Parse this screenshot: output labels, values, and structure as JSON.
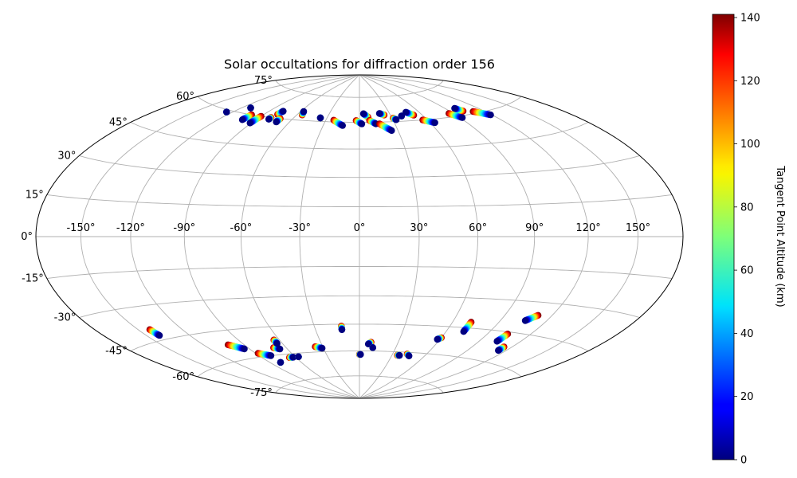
{
  "chart_data": {
    "type": "scatter",
    "projection": "hammer",
    "title": "Solar occultations for diffraction order 156",
    "longitude_ticks": [
      "-150°",
      "-120°",
      "-90°",
      "-60°",
      "-30°",
      "0°",
      "30°",
      "60°",
      "90°",
      "120°",
      "150°"
    ],
    "longitude_values": [
      -150,
      -120,
      -90,
      -60,
      -30,
      0,
      30,
      60,
      90,
      120,
      150
    ],
    "latitude_ticks": [
      "-75°",
      "-60°",
      "-45°",
      "-30°",
      "-15°",
      "0°",
      "15°",
      "30°",
      "45°",
      "60°",
      "75°"
    ],
    "latitude_values": [
      -75,
      -60,
      -45,
      -30,
      -15,
      0,
      15,
      30,
      45,
      60,
      75
    ],
    "grid": true,
    "colorbar": {
      "label": "Tangent Point Altitude (km)",
      "range": [
        0,
        141
      ],
      "ticks": [
        0,
        20,
        40,
        60,
        80,
        100,
        120,
        140
      ],
      "tick_labels": [
        "0",
        "20",
        "40",
        "60",
        "80",
        "100",
        "120",
        "140"
      ],
      "colormap": "jet"
    },
    "tracks": [
      {
        "lon_start": -125,
        "lat_start": 59,
        "lon_end": -125,
        "lat_end": 59
      },
      {
        "lon_start": -112,
        "lat_start": 63,
        "lon_end": -112,
        "lat_end": 63
      },
      {
        "lon_start": -100,
        "lat_start": 60,
        "lon_end": -101,
        "lat_end": 57
      },
      {
        "lon_start": -90,
        "lat_start": 60,
        "lon_end": -91,
        "lat_end": 56
      },
      {
        "lon_start": -80,
        "lat_start": 60,
        "lon_end": -80,
        "lat_end": 59
      },
      {
        "lon_start": -78,
        "lat_start": 62,
        "lon_end": -77,
        "lat_end": 64
      },
      {
        "lon_start": -71,
        "lat_start": 60,
        "lon_end": -71,
        "lat_end": 58
      },
      {
        "lon_start": -55,
        "lat_start": 63,
        "lon_end": -57,
        "lat_end": 65
      },
      {
        "lon_start": -36,
        "lat_start": 62,
        "lon_end": -36,
        "lat_end": 62
      },
      {
        "lon_start": -23,
        "lat_start": 61,
        "lon_end": -14,
        "lat_end": 58
      },
      {
        "lon_start": -3,
        "lat_start": 61,
        "lon_end": 2,
        "lat_end": 59
      },
      {
        "lon_start": 8,
        "lat_start": 63,
        "lon_end": 4,
        "lat_end": 65
      },
      {
        "lon_start": 9,
        "lat_start": 61,
        "lon_end": 14,
        "lat_end": 59
      },
      {
        "lon_start": 17,
        "lat_start": 59,
        "lon_end": 25,
        "lat_end": 55
      },
      {
        "lon_start": 24,
        "lat_start": 64,
        "lon_end": 20,
        "lat_end": 65
      },
      {
        "lon_start": 31,
        "lat_start": 62,
        "lon_end": 33,
        "lat_end": 61
      },
      {
        "lon_start": 40,
        "lat_start": 63,
        "lon_end": 40,
        "lat_end": 63
      },
      {
        "lon_start": 52,
        "lat_start": 63,
        "lon_end": 47,
        "lat_end": 65
      },
      {
        "lon_start": 56,
        "lat_start": 60,
        "lon_end": 64,
        "lat_end": 58
      },
      {
        "lon_start": 86,
        "lat_start": 62,
        "lon_end": 92,
        "lat_end": 59
      },
      {
        "lon_start": 102,
        "lat_start": 62,
        "lon_end": 99,
        "lat_end": 64
      },
      {
        "lon_start": 110,
        "lat_start": 61,
        "lon_end": 119,
        "lat_end": 58
      },
      {
        "lon_start": -142,
        "lat_start": -40,
        "lon_end": -141,
        "lat_end": -43
      },
      {
        "lon_start": -102,
        "lat_start": -52,
        "lon_end": -94,
        "lat_end": -55
      },
      {
        "lon_start": -88,
        "lat_start": -58,
        "lon_end": -80,
        "lat_end": -60
      },
      {
        "lon_start": -70,
        "lat_start": -56,
        "lon_end": -66,
        "lat_end": -57
      },
      {
        "lon_start": -64,
        "lat_start": -52,
        "lon_end": -64,
        "lat_end": -54
      },
      {
        "lon_start": -66,
        "lat_start": -62,
        "lon_end": -62,
        "lat_end": -62
      },
      {
        "lon_start": -80,
        "lat_start": -64,
        "lon_end": -80,
        "lat_end": -64
      },
      {
        "lon_start": -57,
        "lat_start": -62,
        "lon_end": -57,
        "lat_end": -62
      },
      {
        "lon_start": -36,
        "lat_start": -57,
        "lon_end": -31,
        "lat_end": -58
      },
      {
        "lon_start": -12,
        "lat_start": -46,
        "lon_end": -12,
        "lat_end": -48
      },
      {
        "lon_start": 0,
        "lat_start": -62,
        "lon_end": 1,
        "lat_end": -62
      },
      {
        "lon_start": 9,
        "lat_start": -55,
        "lon_end": 7,
        "lat_end": -56
      },
      {
        "lon_start": 11,
        "lat_start": -58,
        "lon_end": 11,
        "lat_end": -58
      },
      {
        "lon_start": 35,
        "lat_start": -62,
        "lon_end": 37,
        "lat_end": -62
      },
      {
        "lon_start": 43,
        "lat_start": -61,
        "lon_end": 46,
        "lat_end": -62
      },
      {
        "lon_start": 60,
        "lat_start": -51,
        "lon_end": 58,
        "lat_end": -52
      },
      {
        "lon_start": 72,
        "lat_start": -42,
        "lon_end": 72,
        "lat_end": -47
      },
      {
        "lon_start": 111,
        "lat_start": -36,
        "lon_end": 106,
        "lat_end": -39
      },
      {
        "lon_start": 104,
        "lat_start": -46,
        "lon_end": 103,
        "lat_end": -50
      },
      {
        "lon_start": 114,
        "lat_start": -52,
        "lon_end": 114,
        "lat_end": -54
      }
    ]
  }
}
